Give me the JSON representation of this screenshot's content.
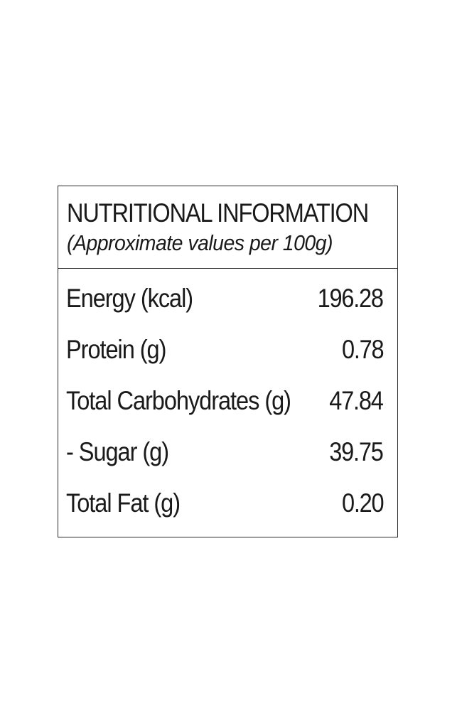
{
  "panel": {
    "title": "NUTRITIONAL INFORMATION",
    "subtitle": "(Approximate values per 100g)"
  },
  "nutrients": [
    {
      "label": "Energy (kcal)",
      "value": "196.28"
    },
    {
      "label": "Protein (g)",
      "value": "0.78"
    },
    {
      "label": "Total Carbohydrates (g)",
      "value": "47.84"
    },
    {
      "label": "- Sugar (g)",
      "value": "39.75"
    },
    {
      "label": "Total Fat (g)",
      "value": "0.20"
    }
  ],
  "colors": {
    "text": "#1a1a1a",
    "border": "#2a2a2a",
    "background": "#ffffff"
  }
}
